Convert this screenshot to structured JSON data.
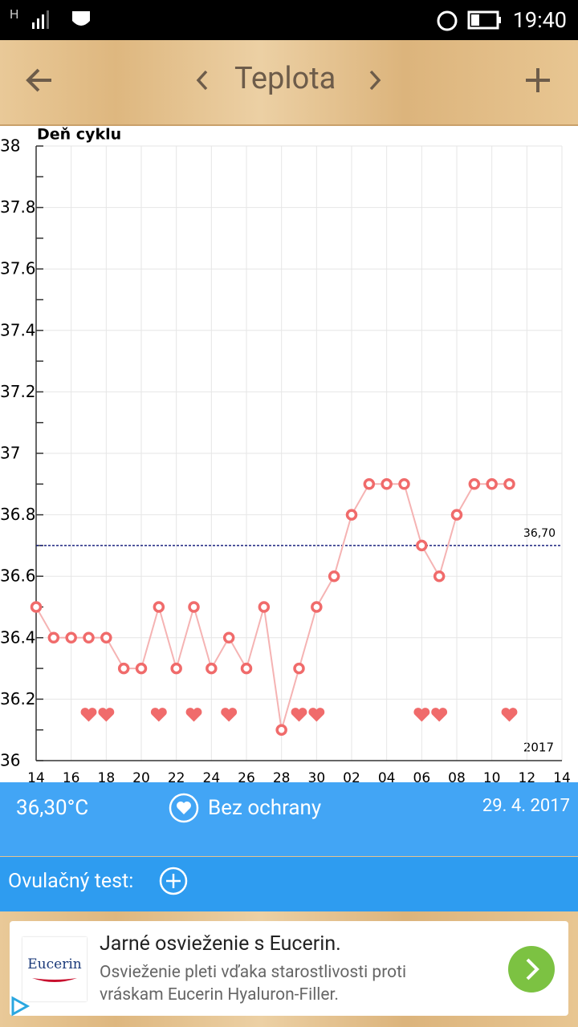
{
  "status_bar": {
    "network": "H",
    "time": "19:40"
  },
  "header": {
    "title": "Teplota"
  },
  "chart_data": {
    "type": "line",
    "x_label": "Deň cyklu",
    "year_label": "2017",
    "categories": [
      "14",
      null,
      "16",
      null,
      "18",
      null,
      "20",
      null,
      "22",
      null,
      "24",
      null,
      "26",
      null,
      "28",
      null,
      "30",
      null,
      "02",
      null,
      "04",
      null,
      "06",
      null,
      "08",
      null,
      "10",
      null,
      "12",
      null,
      "14"
    ],
    "series": [
      {
        "name": "Teplota",
        "color": "#f06b6b",
        "line_color": "#f5b3b3",
        "values": [
          36.5,
          36.4,
          36.4,
          36.4,
          36.4,
          36.3,
          36.3,
          36.5,
          36.3,
          36.5,
          36.3,
          36.4,
          36.3,
          36.5,
          36.1,
          36.3,
          36.5,
          36.6,
          36.8,
          36.9,
          36.9,
          36.9,
          36.7,
          36.6,
          36.8,
          36.9,
          36.9,
          36.9,
          null,
          null,
          null
        ]
      }
    ],
    "hearts": [
      false,
      false,
      false,
      true,
      true,
      false,
      false,
      true,
      false,
      true,
      false,
      true,
      false,
      false,
      false,
      true,
      true,
      false,
      false,
      false,
      false,
      false,
      true,
      true,
      false,
      false,
      false,
      true,
      false,
      false,
      false
    ],
    "reference": {
      "value": 36.7,
      "label": "36,70",
      "color": "#1a237e"
    },
    "ylim": [
      36,
      38
    ],
    "yticks": [
      36,
      36.2,
      36.4,
      36.6,
      36.8,
      37,
      37.2,
      37.4,
      37.6,
      37.8,
      38
    ],
    "grid": true
  },
  "info": {
    "temperature": "36,30°C",
    "protection": "Bez ochrany",
    "date": "29. 4. 2017",
    "ovulation_test": "Ovulačný test:"
  },
  "ad": {
    "logo": "Eucerin",
    "title": "Jarné osvieženie s Eucerin.",
    "text_line1": "Osvieženie pleti vďaka starostlivosti proti",
    "text_line2": "vráskam Eucerin Hyaluron-Filler."
  }
}
